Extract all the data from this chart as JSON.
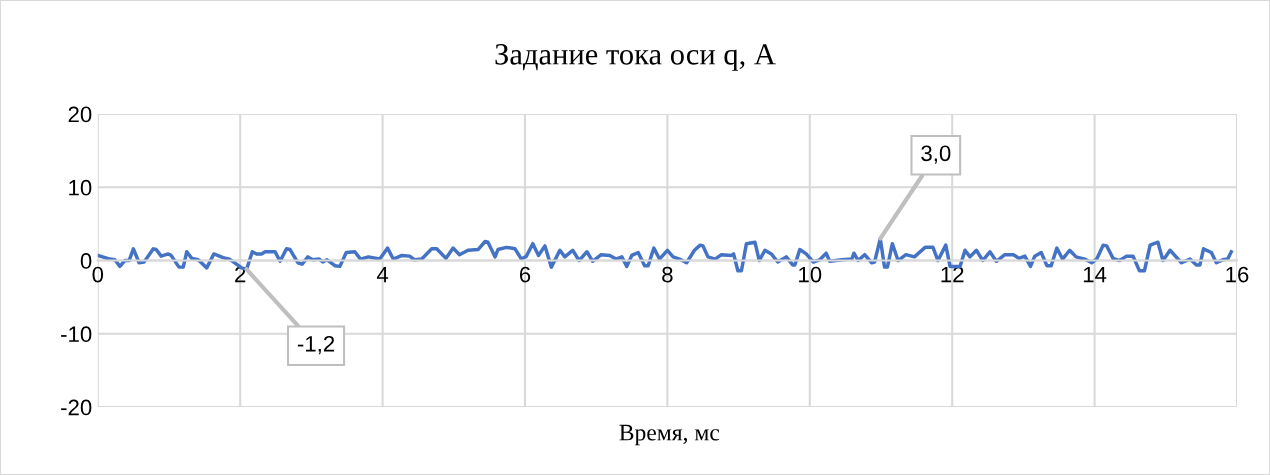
{
  "chart_data": {
    "type": "line",
    "title": "Задание тока оси q, А",
    "xlabel": "Время, мс",
    "xlim": [
      0,
      16
    ],
    "xticks": [
      0,
      2,
      4,
      6,
      8,
      10,
      12,
      14,
      16
    ],
    "ylim": [
      -20,
      20
    ],
    "yticks": [
      -20,
      -10,
      0,
      10,
      20
    ],
    "grid": true,
    "legend": false,
    "marker": "none",
    "line_style": "solid",
    "annotations": [
      {
        "text": "-1,2",
        "x": 2.09,
        "y": -1.2
      },
      {
        "text": "3,0",
        "x": 10.99,
        "y": 3.0
      }
    ],
    "series": [
      {
        "color": "#4472c4",
        "x": [
          0.0,
          0.17,
          0.24,
          0.31,
          0.38,
          0.44,
          0.5,
          0.58,
          0.65,
          0.78,
          0.82,
          0.89,
          0.99,
          1.03,
          1.14,
          1.2,
          1.25,
          1.32,
          1.41,
          1.53,
          1.63,
          1.76,
          1.85,
          2.02,
          2.09,
          2.17,
          2.23,
          2.3,
          2.35,
          2.49,
          2.56,
          2.65,
          2.7,
          2.81,
          2.87,
          2.95,
          3.02,
          3.11,
          3.16,
          3.22,
          3.33,
          3.4,
          3.49,
          3.61,
          3.69,
          3.8,
          3.96,
          4.07,
          4.15,
          4.27,
          4.38,
          4.45,
          4.55,
          4.69,
          4.76,
          4.89,
          4.99,
          5.08,
          5.2,
          5.34,
          5.44,
          5.48,
          5.58,
          5.62,
          5.74,
          5.86,
          5.95,
          6.02,
          6.11,
          6.19,
          6.28,
          6.37,
          6.49,
          6.56,
          6.67,
          6.76,
          6.87,
          6.95,
          7.07,
          7.19,
          7.28,
          7.36,
          7.43,
          7.5,
          7.59,
          7.68,
          7.73,
          7.81,
          7.89,
          8.0,
          8.08,
          8.17,
          8.27,
          8.38,
          8.46,
          8.5,
          8.57,
          8.67,
          8.76,
          8.9,
          8.93,
          8.99,
          9.04,
          9.11,
          9.23,
          9.29,
          9.37,
          9.46,
          9.55,
          9.67,
          9.76,
          9.79,
          9.86,
          9.95,
          10.05,
          10.14,
          10.23,
          10.28,
          10.45,
          10.59,
          10.62,
          10.68,
          10.77,
          10.87,
          10.91,
          10.99,
          11.05,
          11.09,
          11.16,
          11.24,
          11.35,
          11.47,
          11.62,
          11.73,
          11.8,
          11.91,
          11.97,
          12.11,
          12.18,
          12.25,
          12.34,
          12.43,
          12.53,
          12.62,
          12.74,
          12.86,
          12.94,
          13.02,
          13.1,
          13.16,
          13.25,
          13.33,
          13.39,
          13.47,
          13.55,
          13.65,
          13.74,
          13.86,
          13.96,
          14.03,
          14.12,
          14.17,
          14.26,
          14.35,
          14.45,
          14.54,
          14.63,
          14.7,
          14.78,
          14.89,
          14.96,
          15.06,
          15.22,
          15.34,
          15.43,
          15.48,
          15.53,
          15.64,
          15.71,
          15.8,
          15.87,
          15.92
        ],
        "values": [
          0.7,
          0.2,
          0.1,
          -0.8,
          0,
          0,
          1.6,
          -0.3,
          -0.2,
          1.6,
          1.5,
          0.6,
          0.9,
          0.7,
          -0.9,
          -0.9,
          1.2,
          0.3,
          0.1,
          -1.0,
          0.9,
          0.4,
          0.2,
          -1.0,
          -1.2,
          1.2,
          0.9,
          0.9,
          1.2,
          1.2,
          -0.1,
          1.6,
          1.5,
          -0.3,
          -0.5,
          0.5,
          0.1,
          0.2,
          -0.2,
          0.1,
          -0.7,
          -0.8,
          1.1,
          1.2,
          0.2,
          0.5,
          0.2,
          1.7,
          0.2,
          0.7,
          0.6,
          0.1,
          0.2,
          1.6,
          1.6,
          0.3,
          1.7,
          0.8,
          1.4,
          1.5,
          2.6,
          2.5,
          0.5,
          1.5,
          1.8,
          1.6,
          0.2,
          0.6,
          2.3,
          0.7,
          2.0,
          -0.9,
          1.4,
          0.5,
          1.4,
          0,
          1.2,
          -0.1,
          0.8,
          0.7,
          0.2,
          0.5,
          -0.8,
          0.7,
          1.1,
          -0.7,
          -0.7,
          1.7,
          0.2,
          1.4,
          0.5,
          0.2,
          -0.3,
          1.4,
          2.1,
          2.0,
          0.5,
          0.2,
          0.8,
          0.7,
          0.9,
          -1.4,
          -1.4,
          2.3,
          2.5,
          0,
          1.4,
          0.9,
          -0.2,
          0.5,
          -0.6,
          -0.6,
          1.5,
          0.9,
          -0.2,
          0.1,
          1.0,
          -0.1,
          0.1,
          0.2,
          1.0,
          0,
          0.8,
          -0.3,
          -0.2,
          3.0,
          -0.9,
          -0.9,
          2.3,
          0,
          0.8,
          0.5,
          1.8,
          1.8,
          0,
          2.1,
          -0.8,
          -0.8,
          1.4,
          0.5,
          1.4,
          0,
          1.2,
          -0.1,
          0.8,
          0.8,
          0.3,
          0.6,
          -0.8,
          0.6,
          1.1,
          -0.7,
          -0.7,
          1.7,
          0.2,
          1.4,
          0.5,
          0.2,
          -0.3,
          0.2,
          2.1,
          2.0,
          0.3,
          0,
          0.6,
          0.6,
          -1.4,
          -1.4,
          2.1,
          2.5,
          0,
          1.4,
          -0.3,
          0.2,
          -0.6,
          -0.6,
          1.6,
          1.1,
          -0.3,
          0.1,
          0.2,
          1.2
        ]
      }
    ]
  }
}
